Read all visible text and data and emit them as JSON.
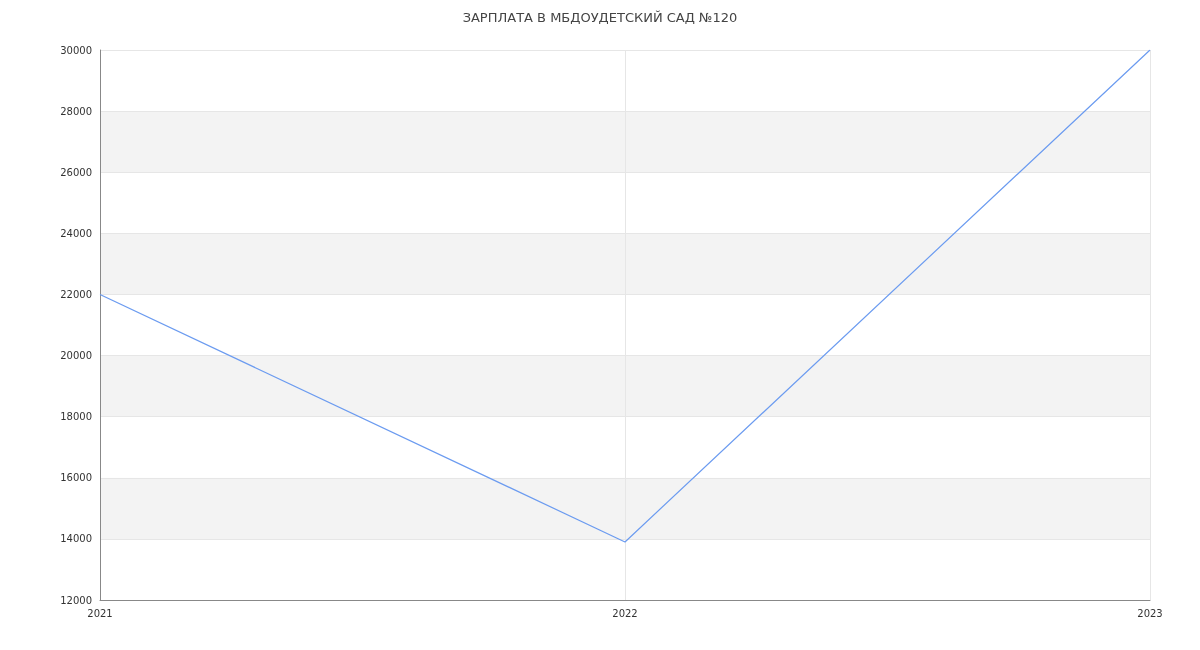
{
  "chart_data": {
    "type": "line",
    "title": "ЗАРПЛАТА В МБДОУДЕТСКИЙ САД №120",
    "categories": [
      "2021",
      "2022",
      "2023"
    ],
    "series": [
      {
        "color": "#6b9bf0",
        "values": [
          22000,
          13900,
          30000
        ]
      }
    ],
    "ylim": [
      12000,
      30000
    ],
    "yticks": [
      12000,
      14000,
      16000,
      18000,
      20000,
      22000,
      24000,
      26000,
      28000,
      30000
    ],
    "grid": true,
    "marker": "none",
    "line_style": "solid"
  }
}
